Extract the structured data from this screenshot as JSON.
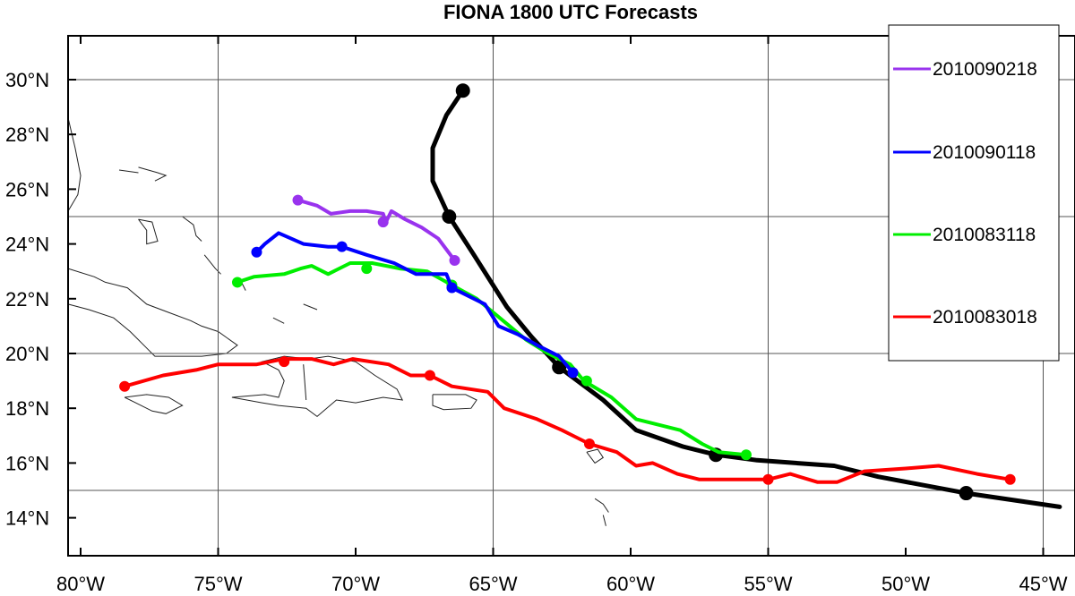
{
  "title": "FIONA 1800 UTC Forecasts",
  "chart_data": {
    "type": "map",
    "title": "FIONA 1800 UTC Forecasts",
    "xlim": [
      -80.5,
      -44.5
    ],
    "ylim": [
      12.3,
      31.6
    ],
    "x_ticks": [
      {
        "value": -80,
        "label": "80°W"
      },
      {
        "value": -75,
        "label": "75°W"
      },
      {
        "value": -70,
        "label": "70°W"
      },
      {
        "value": -65,
        "label": "65°W"
      },
      {
        "value": -60,
        "label": "60°W"
      },
      {
        "value": -55,
        "label": "55°W"
      },
      {
        "value": -50,
        "label": "50°W"
      },
      {
        "value": -45,
        "label": "45°W"
      }
    ],
    "y_ticks": [
      {
        "value": 14,
        "label": "14°N"
      },
      {
        "value": 16,
        "label": "16°N"
      },
      {
        "value": 18,
        "label": "18°N"
      },
      {
        "value": 20,
        "label": "20°N"
      },
      {
        "value": 22,
        "label": "22°N"
      },
      {
        "value": 24,
        "label": "24°N"
      },
      {
        "value": 26,
        "label": "26°N"
      },
      {
        "value": 28,
        "label": "28°N"
      },
      {
        "value": 30,
        "label": "30°N"
      }
    ],
    "grid_lon": [
      -75,
      -65,
      -55,
      -45
    ],
    "grid_lat": [
      15,
      20,
      25,
      30
    ],
    "legend_placement": "top-right",
    "tracks": [
      {
        "id": "observed",
        "name": "",
        "color": "#000000",
        "width": 5,
        "marker_r": 8,
        "points": [
          [
            -44.4,
            14.4
          ],
          [
            -47.8,
            14.9
          ],
          [
            -51,
            15.5
          ],
          [
            -52.6,
            15.9
          ],
          [
            -55.4,
            16.1
          ],
          [
            -56.9,
            16.3
          ],
          [
            -58.1,
            16.6
          ],
          [
            -59.8,
            17.2
          ],
          [
            -61,
            18.3
          ],
          [
            -62.6,
            19.5
          ],
          [
            -63.6,
            20.6
          ],
          [
            -64.5,
            21.7
          ],
          [
            -65.7,
            23.6
          ],
          [
            -66.6,
            25
          ],
          [
            -67.2,
            26.3
          ],
          [
            -67.2,
            27.5
          ],
          [
            -66.7,
            28.7
          ],
          [
            -66.1,
            29.6
          ]
        ],
        "markers": [
          [
            -47.8,
            14.9
          ],
          [
            -56.9,
            16.3
          ],
          [
            -62.6,
            19.5
          ],
          [
            -66.6,
            25
          ],
          [
            -66.1,
            29.6
          ]
        ]
      },
      {
        "id": "2010083018",
        "name": "2010083018",
        "color": "#ff0000",
        "width": 4,
        "marker_r": 6,
        "points": [
          [
            -78.4,
            18.8
          ],
          [
            -77,
            19.2
          ],
          [
            -75.8,
            19.4
          ],
          [
            -75,
            19.6
          ],
          [
            -73.6,
            19.6
          ],
          [
            -72.6,
            19.8
          ],
          [
            -71.6,
            19.8
          ],
          [
            -70.8,
            19.6
          ],
          [
            -70.1,
            19.8
          ],
          [
            -68.8,
            19.6
          ],
          [
            -68,
            19.2
          ],
          [
            -67.3,
            19.2
          ],
          [
            -66.5,
            18.8
          ],
          [
            -65.2,
            18.6
          ],
          [
            -64.6,
            18.0
          ],
          [
            -63.4,
            17.6
          ],
          [
            -62.5,
            17.2
          ],
          [
            -61.5,
            16.7
          ],
          [
            -60.5,
            16.4
          ],
          [
            -59.8,
            15.9
          ],
          [
            -59.2,
            16.0
          ],
          [
            -58.3,
            15.6
          ],
          [
            -57.5,
            15.4
          ],
          [
            -56.5,
            15.4
          ],
          [
            -55,
            15.4
          ],
          [
            -54.2,
            15.6
          ],
          [
            -53.2,
            15.3
          ],
          [
            -52.5,
            15.3
          ],
          [
            -51.5,
            15.7
          ],
          [
            -50,
            15.8
          ],
          [
            -48.8,
            15.9
          ],
          [
            -47.4,
            15.6
          ],
          [
            -46.2,
            15.4
          ]
        ],
        "markers": [
          [
            -78.4,
            18.8
          ],
          [
            -72.6,
            19.7
          ],
          [
            -67.3,
            19.2
          ],
          [
            -61.5,
            16.7
          ],
          [
            -55,
            15.4
          ],
          [
            -46.2,
            15.4
          ]
        ]
      },
      {
        "id": "2010083118",
        "name": "2010083118",
        "color": "#00ee00",
        "width": 4,
        "marker_r": 6,
        "points": [
          [
            -74.3,
            22.6
          ],
          [
            -73.7,
            22.8
          ],
          [
            -72.6,
            22.9
          ],
          [
            -72,
            23.1
          ],
          [
            -71.6,
            23.2
          ],
          [
            -71,
            22.9
          ],
          [
            -70.2,
            23.3
          ],
          [
            -69.4,
            23.3
          ],
          [
            -68.4,
            23.1
          ],
          [
            -67.4,
            23.0
          ],
          [
            -66.5,
            22.5
          ],
          [
            -65.6,
            22.0
          ],
          [
            -64.4,
            21.0
          ],
          [
            -63.8,
            20.5
          ],
          [
            -63.0,
            20.0
          ],
          [
            -62.2,
            19.6
          ],
          [
            -61.7,
            19.0
          ],
          [
            -60.7,
            18.4
          ],
          [
            -59.8,
            17.6
          ],
          [
            -59.0,
            17.4
          ],
          [
            -58.2,
            17.2
          ],
          [
            -57.4,
            16.7
          ],
          [
            -56.8,
            16.4
          ],
          [
            -55.8,
            16.3
          ]
        ],
        "markers": [
          [
            -74.3,
            22.6
          ],
          [
            -69.6,
            23.1
          ],
          [
            -66.5,
            22.5
          ],
          [
            -61.6,
            19.0
          ],
          [
            -55.8,
            16.3
          ]
        ]
      },
      {
        "id": "2010090118",
        "name": "2010090118",
        "color": "#0000ff",
        "width": 4,
        "marker_r": 6,
        "points": [
          [
            -73.6,
            23.7
          ],
          [
            -73.3,
            24.0
          ],
          [
            -72.8,
            24.4
          ],
          [
            -71.9,
            24.0
          ],
          [
            -71.0,
            23.9
          ],
          [
            -70.5,
            23.9
          ],
          [
            -69.6,
            23.6
          ],
          [
            -68.6,
            23.3
          ],
          [
            -67.8,
            22.9
          ],
          [
            -66.7,
            22.9
          ],
          [
            -66.5,
            22.4
          ],
          [
            -65.3,
            21.8
          ],
          [
            -64.8,
            21.0
          ],
          [
            -64.1,
            20.7
          ],
          [
            -63.4,
            20.3
          ],
          [
            -62.6,
            19.9
          ],
          [
            -62.1,
            19.3
          ]
        ],
        "markers": [
          [
            -73.6,
            23.7
          ],
          [
            -70.5,
            23.9
          ],
          [
            -66.5,
            22.4
          ],
          [
            -62.1,
            19.3
          ]
        ]
      },
      {
        "id": "2010090218",
        "name": "2010090218",
        "color": "#9933ee",
        "width": 4,
        "marker_r": 6,
        "points": [
          [
            -72.1,
            25.6
          ],
          [
            -71.4,
            25.4
          ],
          [
            -70.9,
            25.1
          ],
          [
            -70.2,
            25.2
          ],
          [
            -69.6,
            25.2
          ],
          [
            -69.0,
            25.1
          ],
          [
            -68.9,
            24.8
          ],
          [
            -68.7,
            25.2
          ],
          [
            -68.2,
            24.9
          ],
          [
            -67.6,
            24.6
          ],
          [
            -67.0,
            24.2
          ],
          [
            -66.4,
            23.4
          ]
        ],
        "markers": [
          [
            -72.1,
            25.6
          ],
          [
            -69.0,
            24.8
          ],
          [
            -66.4,
            23.4
          ]
        ]
      }
    ],
    "legend": [
      {
        "label": "2010090218",
        "color": "#9933ee"
      },
      {
        "label": "2010090118",
        "color": "#0000ff"
      },
      {
        "label": "2010083118",
        "color": "#00ee00"
      },
      {
        "label": "2010083018",
        "color": "#ff0000"
      }
    ],
    "coastlines": [
      [
        [
          -80.5,
          23.1
        ],
        [
          -79.5,
          22.8
        ],
        [
          -79.1,
          22.6
        ],
        [
          -78.3,
          22.4
        ],
        [
          -77.6,
          21.8
        ],
        [
          -76.8,
          21.5
        ],
        [
          -76.0,
          21.2
        ],
        [
          -75.6,
          21.0
        ],
        [
          -75.0,
          20.8
        ],
        [
          -74.3,
          20.3
        ],
        [
          -74.7,
          20.0
        ],
        [
          -75.6,
          19.9
        ],
        [
          -76.4,
          19.9
        ],
        [
          -77.3,
          19.9
        ],
        [
          -77.7,
          20.3
        ],
        [
          -78.2,
          20.8
        ],
        [
          -78.8,
          21.3
        ],
        [
          -79.7,
          21.6
        ],
        [
          -80.5,
          21.8
        ]
      ],
      [
        [
          -78.4,
          18.4
        ],
        [
          -77.6,
          18.5
        ],
        [
          -76.8,
          18.4
        ],
        [
          -76.3,
          18.1
        ],
        [
          -76.9,
          17.8
        ],
        [
          -77.4,
          17.9
        ],
        [
          -78.0,
          18.2
        ],
        [
          -78.4,
          18.4
        ]
      ],
      [
        [
          -74.5,
          18.4
        ],
        [
          -73.3,
          18.5
        ],
        [
          -72.8,
          18.4
        ],
        [
          -72.6,
          19.0
        ],
        [
          -72.8,
          19.4
        ],
        [
          -73.4,
          19.7
        ],
        [
          -72.6,
          19.9
        ],
        [
          -71.7,
          19.8
        ],
        [
          -71.0,
          19.9
        ],
        [
          -70.0,
          19.7
        ],
        [
          -69.3,
          19.2
        ],
        [
          -68.5,
          18.7
        ],
        [
          -68.3,
          18.3
        ],
        [
          -69.0,
          18.4
        ],
        [
          -70.0,
          18.2
        ],
        [
          -70.7,
          18.3
        ],
        [
          -71.4,
          17.7
        ],
        [
          -71.8,
          18.0
        ],
        [
          -72.8,
          18.1
        ],
        [
          -73.4,
          18.2
        ],
        [
          -74.5,
          18.4
        ]
      ],
      [
        [
          -71.9,
          19.6
        ],
        [
          -71.8,
          18.3
        ]
      ],
      [
        [
          -67.2,
          18.5
        ],
        [
          -66.0,
          18.5
        ],
        [
          -65.6,
          18.3
        ],
        [
          -65.8,
          18.0
        ],
        [
          -66.8,
          17.95
        ],
        [
          -67.2,
          18.1
        ],
        [
          -67.2,
          18.5
        ]
      ],
      [
        [
          -80.5,
          28.6
        ],
        [
          -80.2,
          27.5
        ],
        [
          -80.0,
          26.5
        ],
        [
          -80.1,
          25.8
        ],
        [
          -80.5,
          25.2
        ]
      ],
      [
        [
          -77.9,
          26.8
        ],
        [
          -77.2,
          26.6
        ],
        [
          -76.9,
          26.5
        ],
        [
          -77.3,
          26.3
        ]
      ],
      [
        [
          -78.6,
          26.7
        ],
        [
          -77.9,
          26.6
        ]
      ],
      [
        [
          -77.9,
          24.9
        ],
        [
          -77.6,
          24.5
        ],
        [
          -77.6,
          24.0
        ],
        [
          -77.2,
          24.1
        ],
        [
          -77.4,
          24.8
        ],
        [
          -77.9,
          24.9
        ]
      ],
      [
        [
          -76.3,
          25.0
        ],
        [
          -75.9,
          24.7
        ],
        [
          -75.8,
          24.3
        ],
        [
          -75.6,
          24.1
        ]
      ],
      [
        [
          -75.5,
          23.6
        ],
        [
          -75.1,
          23.1
        ],
        [
          -74.9,
          22.9
        ]
      ],
      [
        [
          -74.2,
          22.7
        ],
        [
          -74.0,
          22.3
        ]
      ],
      [
        [
          -73.0,
          21.3
        ],
        [
          -72.6,
          21.1
        ]
      ],
      [
        [
          -71.9,
          21.8
        ],
        [
          -71.4,
          21.6
        ]
      ],
      [
        [
          -61.6,
          16.4
        ],
        [
          -61.3,
          16.0
        ],
        [
          -61.0,
          16.2
        ],
        [
          -61.2,
          16.5
        ],
        [
          -61.6,
          16.4
        ]
      ],
      [
        [
          -61.3,
          14.7
        ],
        [
          -61.0,
          14.5
        ],
        [
          -60.8,
          14.2
        ]
      ],
      [
        [
          -61.0,
          14.1
        ],
        [
          -60.9,
          13.7
        ]
      ]
    ]
  }
}
